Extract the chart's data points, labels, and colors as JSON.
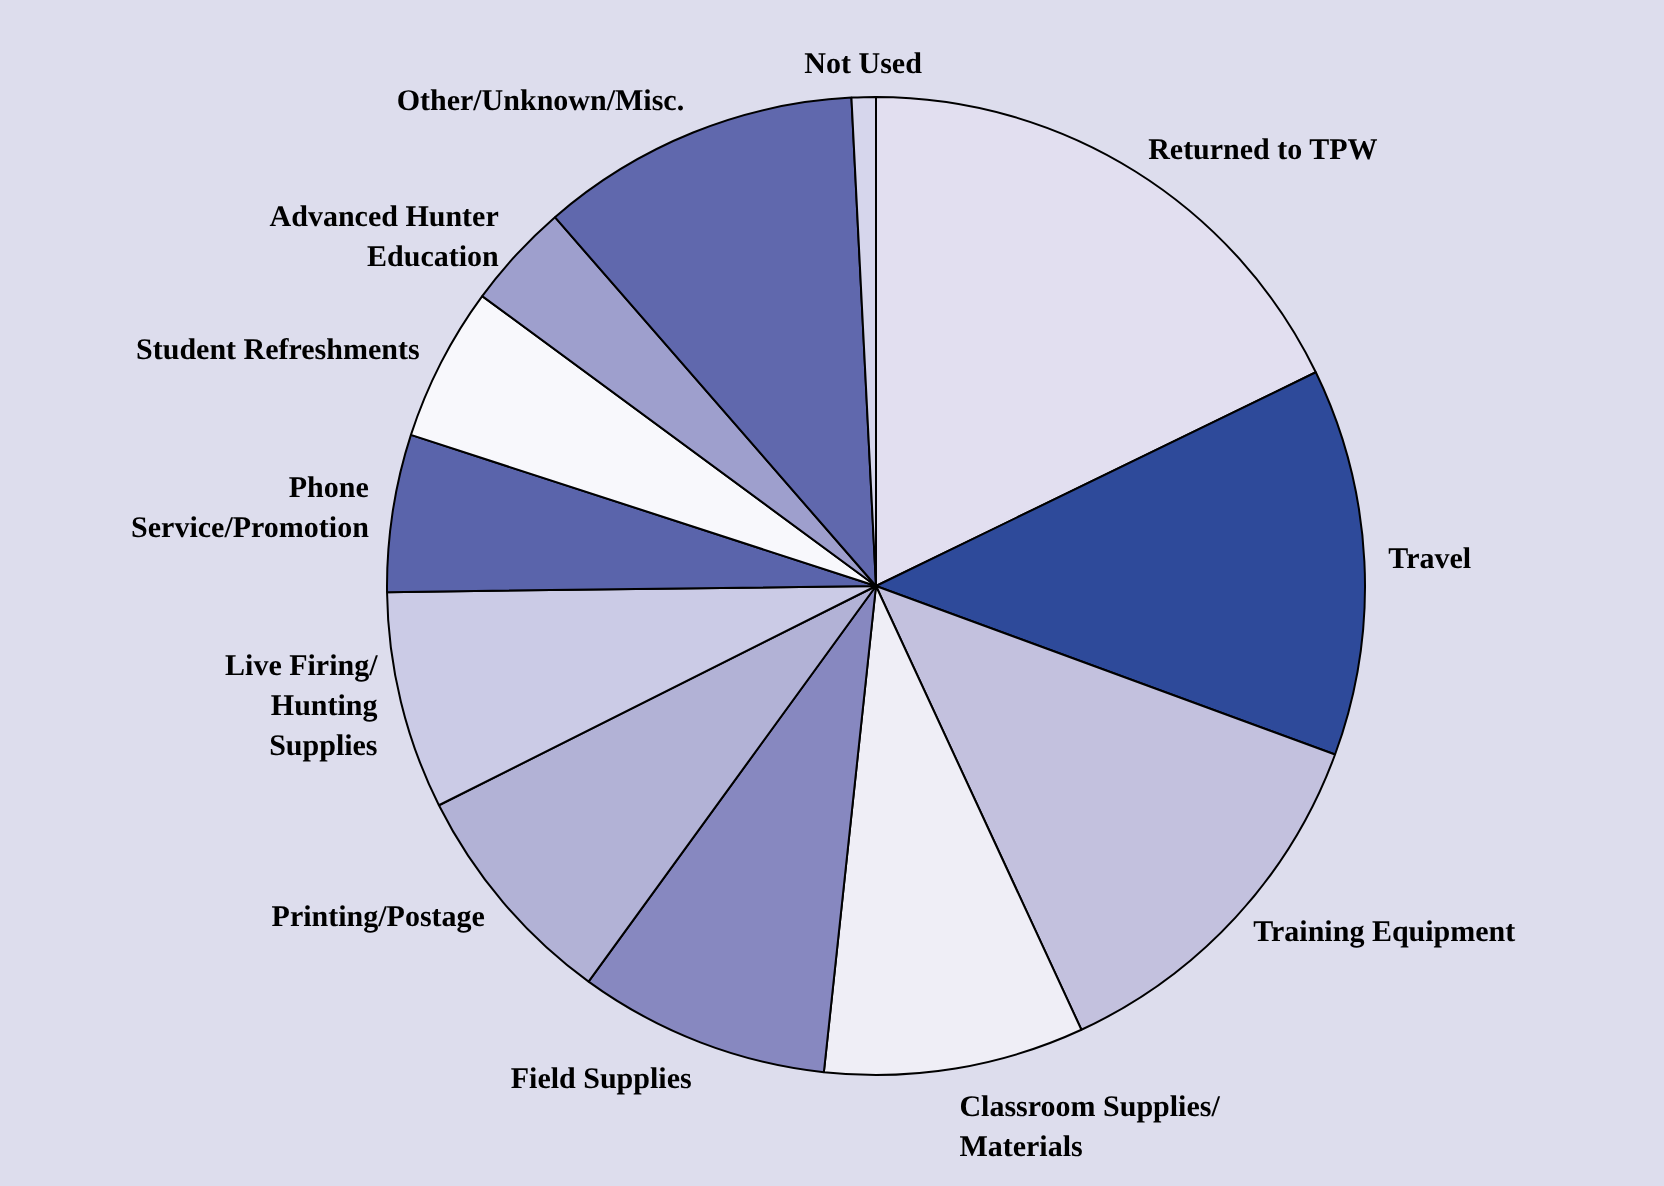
{
  "chart_data": {
    "type": "pie",
    "categories": [
      "Returned to TPW",
      "Travel",
      "Training Equipment",
      "Classroom Supplies/ Materials",
      "Field Supplies",
      "Printing/Postage",
      "Live Firing/ Hunting Supplies",
      "Phone Service/Promotion",
      "Student Refreshments",
      "Advanced Hunter Education",
      "Other/Unknown/Misc.",
      "Not Used"
    ],
    "values": [
      17.8,
      12.8,
      12.5,
      8.6,
      8.3,
      7.6,
      7.2,
      5.2,
      5.1,
      3.5,
      10.6,
      0.8
    ],
    "colors": [
      "#e2dff0",
      "#2e4a9a",
      "#c3c1de",
      "#efeef6",
      "#8788c0",
      "#b2b2d6",
      "#cbcbe6",
      "#5a64ab",
      "#f8f8fc",
      "#9e9fcd",
      "#6068ad",
      "#d6d6ec"
    ]
  }
}
